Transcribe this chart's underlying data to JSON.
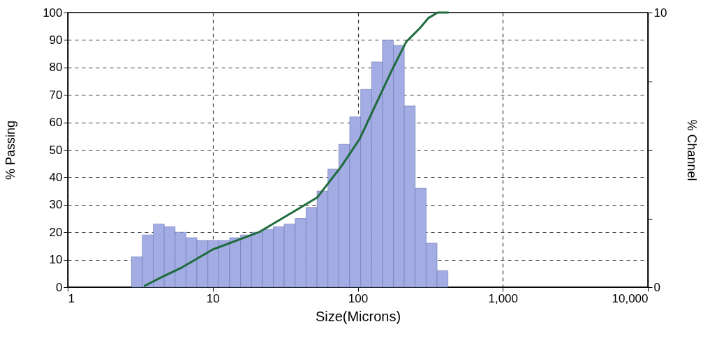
{
  "chart_data": {
    "type": "histogram",
    "xlabel": "Size(Microns)",
    "ylabel": "% Passing",
    "y2label": "% Channel",
    "bins": [
      2.75,
      3.27,
      3.89,
      4.63,
      5.5,
      6.54,
      7.78,
      9.25,
      11,
      13.08,
      15.56,
      18.5,
      22,
      26.16,
      31.11,
      37,
      44,
      52.33,
      62.23,
      74,
      88,
      104.7,
      124.5,
      148,
      176,
      209.3,
      248.9,
      296,
      352,
      418.6
    ],
    "series": [
      {
        "axis": "y2",
        "color": "#a3ade4",
        "values": [
          1.1,
          1.9,
          2.3,
          2.2,
          2.0,
          1.8,
          1.7,
          1.7,
          1.7,
          1.8,
          1.9,
          2.0,
          2.1,
          2.2,
          2.3,
          2.5,
          2.9,
          3.5,
          4.3,
          5.2,
          6.2,
          7.2,
          8.2,
          9.0,
          8.8,
          6.6,
          3.6,
          1.6,
          0.6
        ]
      },
      {
        "type": "line",
        "color": "#1e6b3c",
        "x": [
          3.4,
          4.4,
          6.1,
          10,
          20.8,
          36.4,
          52.6,
          76.3,
          102.6,
          133,
          172.6,
          215.5,
          269,
          307,
          355,
          420
        ],
        "values": [
          0.5,
          3.5,
          7.1,
          13.7,
          20,
          27.6,
          32.7,
          43.7,
          53.8,
          66.5,
          79.2,
          89.3,
          94.4,
          98,
          100,
          100
        ]
      }
    ],
    "log": "x",
    "xlim": [
      1,
      10000
    ],
    "xticks": [
      1,
      10,
      100,
      {
        "value": 1000,
        "label": "1,000"
      },
      {
        "value": 10000,
        "label": "10,000"
      }
    ],
    "ylim": [
      0,
      100
    ],
    "yticks": [
      0,
      10,
      20,
      30,
      40,
      50,
      60,
      70,
      80,
      90,
      100
    ],
    "y2lim": [
      0,
      10
    ],
    "y2ticks": [
      0,
      {
        "value": 2.5,
        "label": null
      },
      {
        "value": 5,
        "label": null
      },
      {
        "value": 7.5,
        "label": null
      },
      10
    ],
    "grid": true,
    "marker": "none",
    "line_style": "solid"
  }
}
